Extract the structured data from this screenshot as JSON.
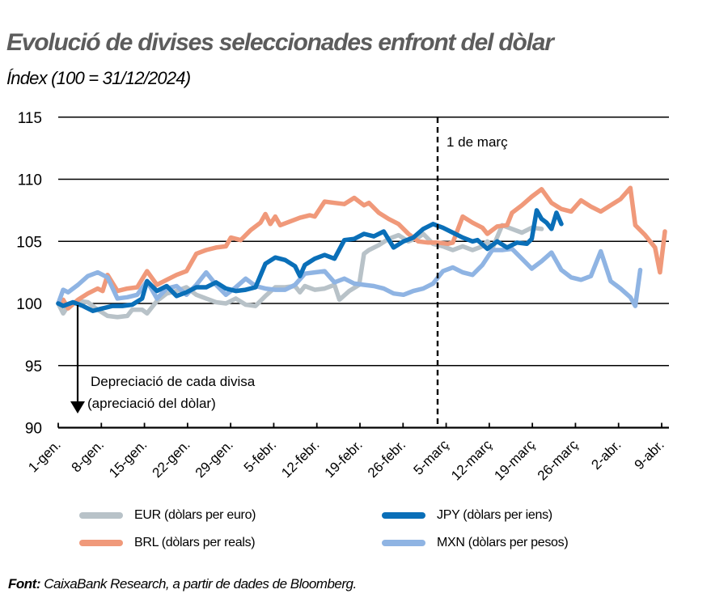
{
  "header": {
    "title": "Evolució de divises seleccionades enfront del dòlar",
    "subtitle": "Índex (100 = 31/12/2024)"
  },
  "annotations": {
    "vline_label": "1 de març",
    "arrow_line1": "Depreciació de cada divisa",
    "arrow_line2": "(apreciació del dòlar)"
  },
  "legend": {
    "items": [
      {
        "code": "EUR",
        "label": "EUR (dòlars per euro)",
        "color": "#B8C2C8"
      },
      {
        "code": "JPY",
        "label": "JPY  (dòlars per iens)",
        "color": "#0A6FB8"
      },
      {
        "code": "BRL",
        "label": "BRL  (dòlars per reals)",
        "color": "#F0997A"
      },
      {
        "code": "MXN",
        "label": "MXN (dòlars per pesos)",
        "color": "#8FB4E3"
      }
    ]
  },
  "source": {
    "prefix": "Font:",
    "text": " CaixaBank Research, a partir de dades de Bloomberg."
  },
  "chart_data": {
    "type": "line",
    "title": "Evolució de divises seleccionades enfront del dòlar",
    "subtitle": "Índex (100 = 31/12/2024)",
    "xlabel": "",
    "ylabel": "Índex (100 = 31/12/2024)",
    "ylim": [
      90,
      115
    ],
    "yticks": [
      90,
      95,
      100,
      105,
      110,
      115
    ],
    "grid": "horizontal",
    "legend_position": "bottom",
    "x_tick_labels": [
      "1-gen.",
      "8-gen.",
      "15-gen.",
      "22-gen.",
      "29-gen.",
      "5-febr.",
      "12-febr.",
      "19-febr.",
      "26-febr.",
      "5-març",
      "12-març",
      "19-març",
      "26-març",
      "2-abr.",
      "9-abr."
    ],
    "vertical_line": {
      "label": "1 de març",
      "x_day": 60
    },
    "x_unit": "days since 31/12/2024",
    "series": [
      {
        "name": "EUR (dòlars per euro)",
        "color": "#B8C2C8",
        "points": [
          [
            0,
            100
          ],
          [
            1,
            99.2
          ],
          [
            2,
            99.8
          ],
          [
            4,
            100.2
          ],
          [
            6,
            100.1
          ],
          [
            8,
            99.5
          ],
          [
            10,
            99.0
          ],
          [
            12,
            98.9
          ],
          [
            14,
            99.0
          ],
          [
            15,
            99.5
          ],
          [
            17,
            99.5
          ],
          [
            18,
            99.2
          ],
          [
            20,
            100.2
          ],
          [
            22,
            100.8
          ],
          [
            24,
            101.0
          ],
          [
            26,
            101.3
          ],
          [
            28,
            100.7
          ],
          [
            30,
            100.4
          ],
          [
            32,
            100.1
          ],
          [
            34,
            100.0
          ],
          [
            36,
            100.4
          ],
          [
            38,
            99.9
          ],
          [
            40,
            99.8
          ],
          [
            42,
            100.6
          ],
          [
            44,
            101.3
          ],
          [
            46,
            101.3
          ],
          [
            48,
            101.4
          ],
          [
            49,
            100.9
          ],
          [
            50,
            101.4
          ],
          [
            52,
            101.1
          ],
          [
            54,
            101.2
          ],
          [
            56,
            101.5
          ],
          [
            57,
            100.3
          ],
          [
            59,
            101.0
          ],
          [
            61,
            101.5
          ],
          [
            62,
            104.0
          ],
          [
            63,
            104.3
          ],
          [
            65,
            104.7
          ],
          [
            67,
            105.2
          ],
          [
            69,
            105.5
          ],
          [
            71,
            105.0
          ],
          [
            73,
            105.3
          ],
          [
            74,
            105.6
          ],
          [
            76,
            104.8
          ],
          [
            78,
            104.6
          ],
          [
            80,
            104.3
          ],
          [
            82,
            104.6
          ],
          [
            84,
            104.3
          ],
          [
            86,
            104.6
          ],
          [
            87,
            105.0
          ],
          [
            88,
            104.4
          ],
          [
            90,
            106.3
          ],
          [
            92,
            106.0
          ],
          [
            94,
            105.7
          ],
          [
            96,
            106.1
          ],
          [
            98,
            106.0
          ]
        ]
      },
      {
        "name": "JPY (dòlars per iens)",
        "color": "#0A6FB8",
        "points": [
          [
            0,
            100
          ],
          [
            1,
            99.8
          ],
          [
            3,
            100.1
          ],
          [
            5,
            99.8
          ],
          [
            7,
            99.4
          ],
          [
            9,
            99.6
          ],
          [
            11,
            99.8
          ],
          [
            13,
            99.8
          ],
          [
            15,
            99.9
          ],
          [
            17,
            100.4
          ],
          [
            18,
            101.8
          ],
          [
            20,
            101.0
          ],
          [
            22,
            101.4
          ],
          [
            24,
            100.6
          ],
          [
            26,
            100.9
          ],
          [
            28,
            101.3
          ],
          [
            30,
            101.3
          ],
          [
            32,
            101.7
          ],
          [
            34,
            101.2
          ],
          [
            36,
            101.0
          ],
          [
            38,
            101.1
          ],
          [
            40,
            101.3
          ],
          [
            42,
            103.2
          ],
          [
            44,
            103.7
          ],
          [
            46,
            103.5
          ],
          [
            48,
            103.0
          ],
          [
            49,
            102.2
          ],
          [
            50,
            103.1
          ],
          [
            52,
            103.6
          ],
          [
            54,
            103.9
          ],
          [
            56,
            103.6
          ],
          [
            58,
            105.1
          ],
          [
            60,
            105.2
          ],
          [
            62,
            105.6
          ],
          [
            64,
            105.4
          ],
          [
            66,
            105.8
          ],
          [
            68,
            104.5
          ],
          [
            70,
            105.0
          ],
          [
            72,
            105.3
          ],
          [
            74,
            106.0
          ],
          [
            76,
            106.4
          ],
          [
            78,
            106.1
          ],
          [
            80,
            105.7
          ],
          [
            82,
            105.3
          ],
          [
            84,
            105.0
          ],
          [
            85,
            105.1
          ],
          [
            87,
            104.4
          ],
          [
            89,
            105.0
          ],
          [
            91,
            104.5
          ],
          [
            93,
            104.9
          ],
          [
            95,
            104.8
          ],
          [
            96,
            105.2
          ],
          [
            97,
            107.5
          ],
          [
            98,
            106.8
          ],
          [
            99,
            106.5
          ],
          [
            100,
            106.0
          ],
          [
            101,
            107.3
          ],
          [
            102,
            106.4
          ]
        ]
      },
      {
        "name": "BRL (dòlars per reals)",
        "color": "#F0997A",
        "points": [
          [
            0,
            100
          ],
          [
            1,
            100.3
          ],
          [
            2,
            99.6
          ],
          [
            4,
            100.3
          ],
          [
            6,
            100.8
          ],
          [
            8,
            101.2
          ],
          [
            9,
            101.0
          ],
          [
            10,
            102.3
          ],
          [
            12,
            101.0
          ],
          [
            14,
            101.2
          ],
          [
            16,
            101.3
          ],
          [
            18,
            102.6
          ],
          [
            20,
            101.5
          ],
          [
            22,
            101.9
          ],
          [
            24,
            102.3
          ],
          [
            26,
            102.6
          ],
          [
            28,
            104.0
          ],
          [
            30,
            104.3
          ],
          [
            32,
            104.5
          ],
          [
            34,
            104.6
          ],
          [
            35,
            105.3
          ],
          [
            37,
            105.1
          ],
          [
            39,
            105.9
          ],
          [
            41,
            106.5
          ],
          [
            42,
            107.2
          ],
          [
            43,
            106.4
          ],
          [
            44,
            107.0
          ],
          [
            45,
            106.3
          ],
          [
            47,
            106.6
          ],
          [
            49,
            106.9
          ],
          [
            51,
            107.1
          ],
          [
            52,
            107.0
          ],
          [
            54,
            108.2
          ],
          [
            56,
            108.1
          ],
          [
            58,
            108.0
          ],
          [
            60,
            108.5
          ],
          [
            62,
            107.9
          ],
          [
            63,
            108.1
          ],
          [
            65,
            107.3
          ],
          [
            67,
            106.8
          ],
          [
            69,
            106.4
          ],
          [
            71,
            105.6
          ],
          [
            73,
            105.0
          ],
          [
            75,
            104.9
          ],
          [
            77,
            104.9
          ],
          [
            79,
            104.8
          ],
          [
            80,
            104.9
          ],
          [
            82,
            107.0
          ],
          [
            84,
            106.5
          ],
          [
            86,
            106.1
          ],
          [
            87,
            105.6
          ],
          [
            89,
            106.2
          ],
          [
            91,
            106.3
          ],
          [
            92,
            107.3
          ],
          [
            94,
            107.9
          ],
          [
            96,
            108.6
          ],
          [
            98,
            109.2
          ],
          [
            100,
            108.1
          ],
          [
            102,
            107.6
          ],
          [
            104,
            107.4
          ],
          [
            106,
            108.3
          ],
          [
            108,
            107.8
          ],
          [
            110,
            107.4
          ],
          [
            112,
            107.9
          ],
          [
            114,
            108.4
          ],
          [
            116,
            109.3
          ],
          [
            117,
            106.3
          ],
          [
            119,
            105.5
          ],
          [
            121,
            104.5
          ],
          [
            122,
            102.5
          ],
          [
            123,
            105.8
          ]
        ]
      },
      {
        "name": "MXN (dòlars per pesos)",
        "color": "#8FB4E3",
        "points": [
          [
            0,
            100
          ],
          [
            1,
            101.1
          ],
          [
            2,
            100.9
          ],
          [
            4,
            101.5
          ],
          [
            6,
            102.2
          ],
          [
            8,
            102.5
          ],
          [
            10,
            102.1
          ],
          [
            12,
            100.4
          ],
          [
            14,
            100.5
          ],
          [
            16,
            100.7
          ],
          [
            18,
            101.8
          ],
          [
            20,
            100.4
          ],
          [
            22,
            101.2
          ],
          [
            24,
            101.4
          ],
          [
            26,
            100.7
          ],
          [
            28,
            101.5
          ],
          [
            30,
            102.5
          ],
          [
            32,
            101.5
          ],
          [
            34,
            100.7
          ],
          [
            36,
            101.3
          ],
          [
            38,
            102.0
          ],
          [
            40,
            101.4
          ],
          [
            42,
            101.2
          ],
          [
            44,
            101.1
          ],
          [
            46,
            101.1
          ],
          [
            48,
            101.5
          ],
          [
            50,
            102.4
          ],
          [
            52,
            102.5
          ],
          [
            54,
            102.6
          ],
          [
            56,
            101.7
          ],
          [
            58,
            102.0
          ],
          [
            60,
            101.6
          ],
          [
            62,
            101.5
          ],
          [
            64,
            101.4
          ],
          [
            66,
            101.2
          ],
          [
            68,
            100.8
          ],
          [
            70,
            100.7
          ],
          [
            72,
            101.0
          ],
          [
            74,
            101.2
          ],
          [
            76,
            101.6
          ],
          [
            78,
            102.6
          ],
          [
            80,
            102.9
          ],
          [
            82,
            102.5
          ],
          [
            84,
            102.3
          ],
          [
            86,
            103.1
          ],
          [
            88,
            104.3
          ],
          [
            90,
            104.3
          ],
          [
            92,
            104.4
          ],
          [
            94,
            103.6
          ],
          [
            96,
            102.8
          ],
          [
            98,
            103.4
          ],
          [
            100,
            104.1
          ],
          [
            102,
            102.7
          ],
          [
            104,
            102.1
          ],
          [
            106,
            101.9
          ],
          [
            108,
            102.2
          ],
          [
            110,
            104.2
          ],
          [
            112,
            101.8
          ],
          [
            114,
            101.2
          ],
          [
            116,
            100.5
          ],
          [
            117,
            99.8
          ],
          [
            118,
            102.7
          ]
        ]
      }
    ]
  }
}
